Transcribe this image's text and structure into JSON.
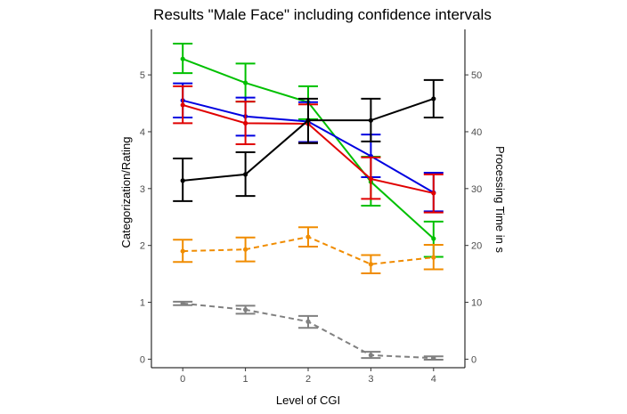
{
  "chart_data": {
    "type": "line",
    "title": "Results \"Male Face\" including confidence intervals",
    "xlabel": "Level of CGI",
    "ylabel": "Categorization/Rating",
    "ylabel_right": "Processing Time in s",
    "x": [
      0,
      1,
      2,
      3,
      4
    ],
    "x_ticks": [
      "0",
      "1",
      "2",
      "3",
      "4"
    ],
    "xlim": [
      -0.5,
      4.5
    ],
    "ylim": [
      -0.15,
      5.8
    ],
    "y_ticks": [
      "0",
      "1",
      "2",
      "3",
      "4",
      "5"
    ],
    "ylim_right": [
      -1.5,
      58
    ],
    "y_ticks_right": [
      "0",
      "10",
      "20",
      "30",
      "40",
      "50"
    ],
    "grid": false,
    "legend": "none",
    "series": [
      {
        "color": "#00c000",
        "axis": "left",
        "dash": "solid",
        "values": [
          5.28,
          4.86,
          4.52,
          3.12,
          2.12
        ],
        "lower": [
          5.03,
          4.53,
          4.22,
          2.7,
          1.8
        ],
        "upper": [
          5.55,
          5.2,
          4.8,
          3.56,
          2.42
        ]
      },
      {
        "color": "#0000e0",
        "axis": "left",
        "dash": "solid",
        "values": [
          4.55,
          4.27,
          4.18,
          3.57,
          2.93
        ],
        "lower": [
          4.25,
          3.93,
          3.82,
          3.2,
          2.6
        ],
        "upper": [
          4.85,
          4.6,
          4.52,
          3.95,
          3.28
        ]
      },
      {
        "color": "#e00000",
        "axis": "left",
        "dash": "solid",
        "values": [
          4.47,
          4.15,
          4.14,
          3.17,
          2.92
        ],
        "lower": [
          4.15,
          3.78,
          3.8,
          2.82,
          2.58
        ],
        "upper": [
          4.8,
          4.53,
          4.48,
          3.55,
          3.25
        ]
      },
      {
        "color": "#000000",
        "axis": "right",
        "dash": "solid",
        "values": [
          31.4,
          32.5,
          42.0,
          42.0,
          45.8
        ],
        "lower": [
          27.8,
          28.7,
          38.0,
          38.3,
          42.5
        ],
        "upper": [
          35.3,
          36.4,
          45.8,
          45.8,
          49.1
        ]
      },
      {
        "color": "#f08c00",
        "axis": "left",
        "dash": "dashed",
        "values": [
          1.9,
          1.93,
          2.15,
          1.67,
          1.79
        ],
        "lower": [
          1.71,
          1.72,
          1.98,
          1.51,
          1.58
        ],
        "upper": [
          2.1,
          2.14,
          2.32,
          1.83,
          2.01
        ]
      },
      {
        "color": "#808080",
        "axis": "left",
        "dash": "dashed",
        "values": [
          0.98,
          0.87,
          0.66,
          0.07,
          0.02
        ],
        "lower": [
          0.95,
          0.8,
          0.55,
          0.02,
          -0.01
        ],
        "upper": [
          1.01,
          0.94,
          0.76,
          0.13,
          0.05
        ]
      }
    ]
  }
}
